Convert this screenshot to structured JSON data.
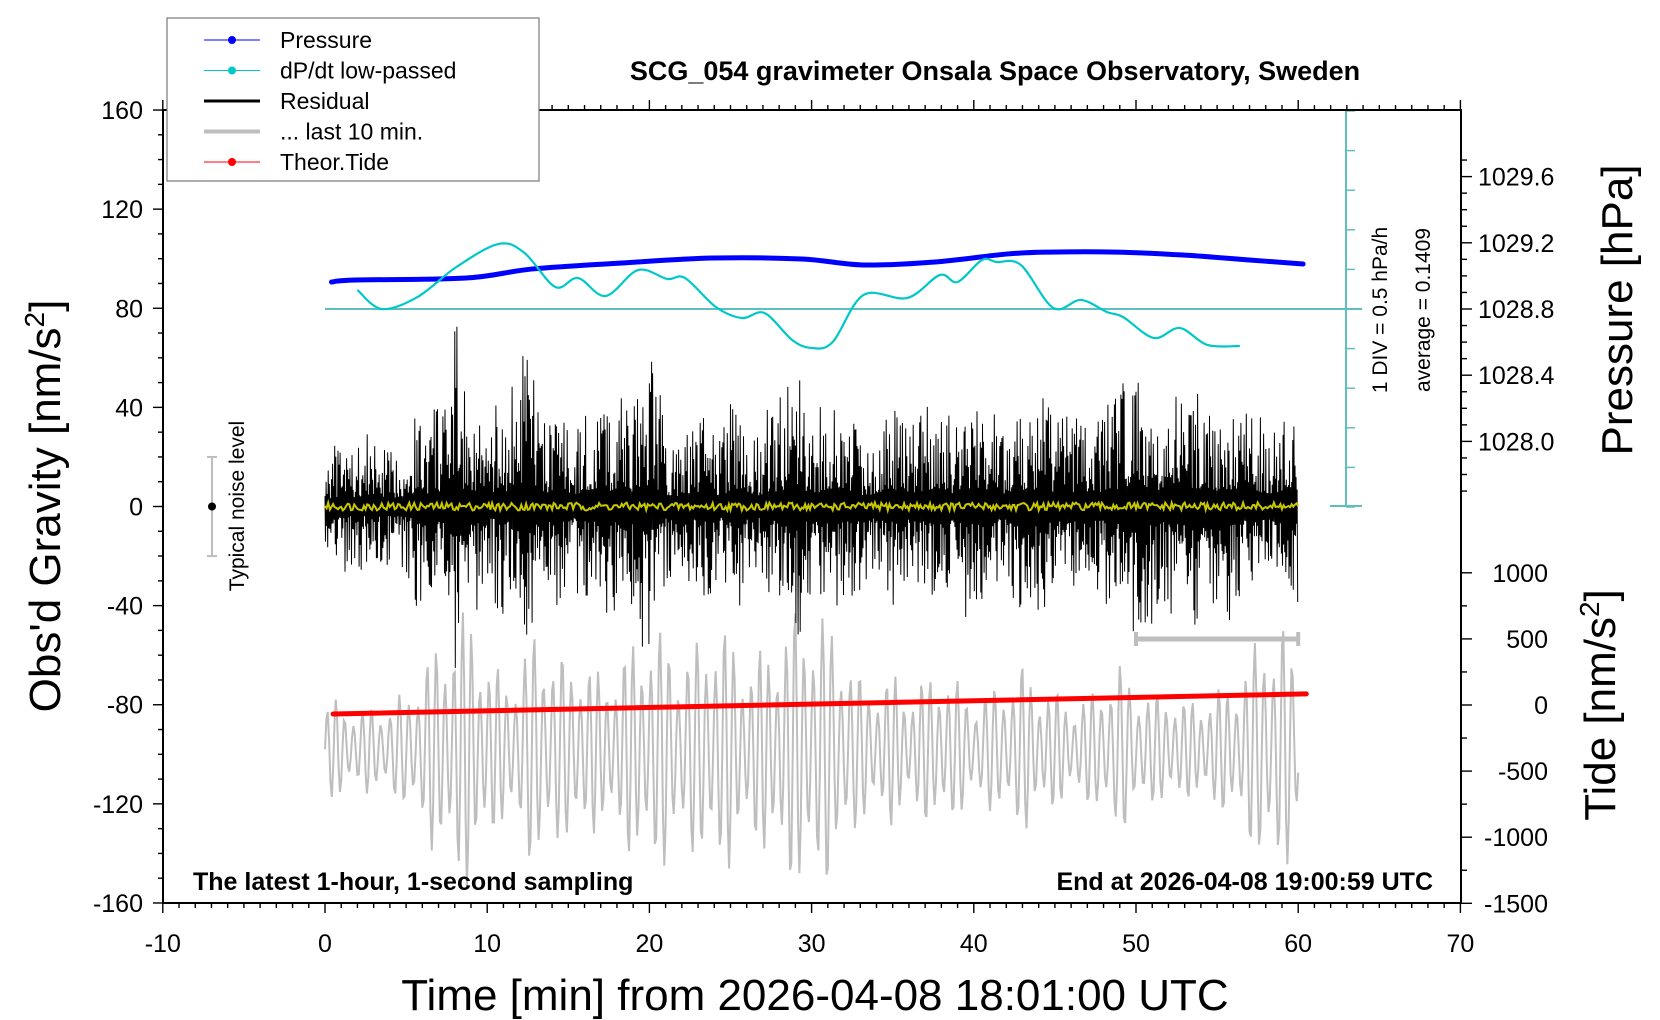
{
  "chart_data": {
    "type": "line",
    "title": "SCG_054 gravimeter Onsala Space Observatory, Sweden",
    "xlabel": "Time [min] from 2026-04-08 18:01:00 UTC",
    "ylabel_left": "Obs'd Gravity [nm/s",
    "ylabel_left_sup": "2",
    "ylabel_left_end": "]",
    "ylabel_right_pressure": "Pressure [hPa]",
    "ylabel_right_tide": "Tide [nm/s",
    "ylabel_right_tide_sup": "2",
    "ylabel_right_tide_end": "]",
    "xlim": [
      -10,
      70
    ],
    "ylim_gravity": [
      -160,
      160
    ],
    "x_ticks": [
      "-10",
      "0",
      "10",
      "20",
      "30",
      "40",
      "50",
      "60",
      "70"
    ],
    "y_ticks_gravity": [
      "160",
      "120",
      "80",
      "40",
      "0",
      "-40",
      "-80",
      "-120",
      "-160"
    ],
    "y_ticks_pressure": [
      "1029.6",
      "1029.2",
      "1028.8",
      "1028.4",
      "1028.0"
    ],
    "y_ticks_tide": [
      "1000",
      "500",
      "0",
      "-500",
      "-1000",
      "-1500"
    ],
    "annotation_left": "The latest 1-hour, 1-second sampling",
    "annotation_right": "End at 2026-04-08 19:00:59 UTC",
    "dpdt_div_label": "1 DIV = 0.5 hPa/h",
    "dpdt_average_label": "average = 0.1409",
    "dpdt_average": 0.1409,
    "dpdt_div": 0.5,
    "noise_label": "Typical noise level",
    "noise_level": 20,
    "last10_scale_bar": [
      50,
      60
    ],
    "legend": {
      "placement": "top-left",
      "items": [
        {
          "label": "Pressure",
          "color": "#0000ff",
          "style": "line-dot"
        },
        {
          "label": "dP/dt low-passed",
          "color": "#00c8c8",
          "style": "line-dot"
        },
        {
          "label": "Residual",
          "color": "#000000",
          "style": "line"
        },
        {
          "label": "... last 10 min.",
          "color": "#bebebe",
          "style": "thick-line"
        },
        {
          "label": "Theor.Tide",
          "color": "#ff0000",
          "style": "line-dot"
        }
      ]
    },
    "series": [
      {
        "name": "Pressure",
        "unit": "hPa",
        "color": "#0000ff",
        "x": [
          0.4,
          1.9,
          8.7,
          12.8,
          18.3,
          23.9,
          29.4,
          33.2,
          37.6,
          42.0,
          44.7,
          48.8,
          52.9,
          57.0,
          60.3
        ],
        "y": [
          1028.963,
          1028.975,
          1028.987,
          1029.042,
          1029.078,
          1029.108,
          1029.102,
          1029.066,
          1029.084,
          1029.132,
          1029.144,
          1029.144,
          1029.126,
          1029.096,
          1029.072
        ]
      },
      {
        "name": "dP/dt low-passed",
        "unit": "hPa/h",
        "color": "#00c8c8",
        "x": [
          2.0,
          3.5,
          5.7,
          8.1,
          10.7,
          12.3,
          14.2,
          15.6,
          17.3,
          19.3,
          21.1,
          22.2,
          24.1,
          25.7,
          27.1,
          28.8,
          30.0,
          31.3,
          33.2,
          35.9,
          37.9,
          39.0,
          40.5,
          41.4,
          42.9,
          44.9,
          46.6,
          48.2,
          49.2,
          51.1,
          52.7,
          54.4,
          56.4
        ],
        "y": [
          0.381,
          0.141,
          0.292,
          0.671,
          0.962,
          0.848,
          0.419,
          0.532,
          0.305,
          0.633,
          0.52,
          0.532,
          0.166,
          0.027,
          0.09,
          -0.25,
          -0.351,
          -0.276,
          0.318,
          0.28,
          0.57,
          0.482,
          0.76,
          0.734,
          0.697,
          0.154,
          0.255,
          0.103,
          0.04,
          -0.225,
          -0.099,
          -0.313,
          -0.326
        ]
      },
      {
        "name": "Residual",
        "unit": "nm/s2",
        "color": "#000000",
        "step_min": 0.5,
        "envelope": [
          22,
          25,
          28,
          24,
          26,
          30,
          27,
          25,
          22,
          26,
          30,
          42,
          35,
          45,
          40,
          55,
          75,
          48,
          42,
          38,
          30,
          45,
          38,
          50,
          62,
          67,
          40,
          35,
          42,
          38,
          30,
          35,
          40,
          38,
          45,
          42,
          48,
          40,
          52,
          57,
          60,
          45,
          30,
          28,
          32,
          35,
          38,
          40,
          30,
          35,
          42,
          48,
          35,
          30,
          40,
          38,
          45,
          52,
          58,
          40,
          38,
          44,
          48,
          42,
          35,
          40,
          30,
          32,
          38,
          40,
          42,
          35,
          38,
          40,
          45,
          42,
          38,
          36,
          40,
          45,
          48,
          40,
          42,
          35,
          38,
          42,
          44,
          45,
          47,
          40,
          40,
          42,
          38,
          36,
          40,
          38,
          42,
          45,
          50,
          52,
          55,
          48,
          42,
          40,
          45,
          42,
          44,
          48,
          50,
          40,
          42,
          46,
          48,
          38,
          40,
          36,
          34,
          38,
          40,
          40
        ]
      },
      {
        "name": "Residual low-passed",
        "unit": "nm/s2",
        "color": "#c8c800",
        "amplitude": 2
      },
      {
        "name": "... last 10 min.",
        "unit": "nm/s2",
        "color": "#bebebe",
        "offset": -98,
        "cycles_per_min": 1.8,
        "envelope": [
          18,
          22,
          15,
          20,
          18,
          25,
          35,
          45,
          55,
          58,
          40,
          30,
          38,
          50,
          45,
          35,
          42,
          30,
          38,
          45,
          52,
          48,
          40,
          45,
          55,
          48,
          38,
          42,
          50,
          58,
          60,
          55,
          45,
          30,
          28,
          32,
          25,
          30,
          35,
          28,
          22,
          25,
          30,
          35,
          28,
          25,
          20,
          22,
          30,
          35,
          28,
          22,
          25,
          20,
          22,
          25,
          28,
          40,
          50,
          55,
          30
        ]
      },
      {
        "name": "Theor.Tide",
        "unit": "nm/s2",
        "color": "#ff0000",
        "x": [
          0.5,
          60.5
        ],
        "y": [
          -68,
          84
        ]
      }
    ]
  }
}
